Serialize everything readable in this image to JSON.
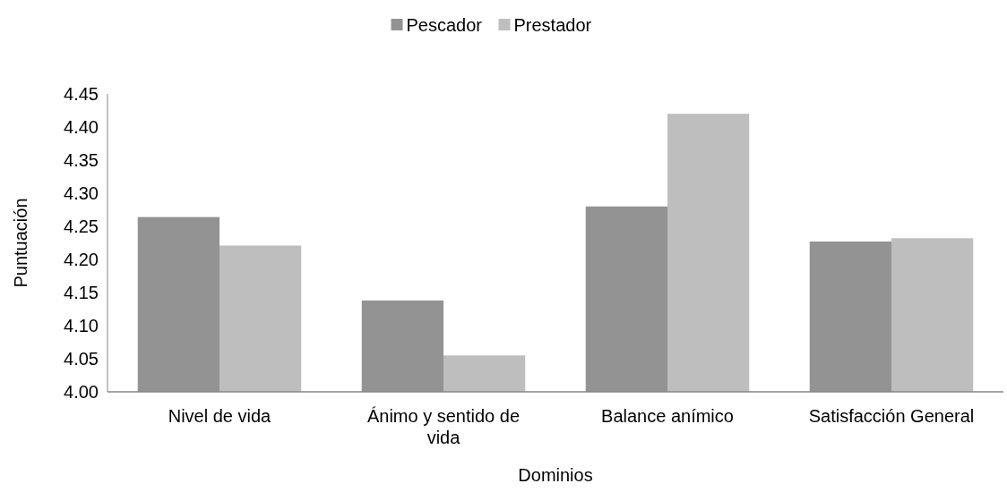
{
  "chart_data": {
    "type": "bar",
    "xlabel": "Dominios",
    "ylabel": "Puntuación",
    "categories": [
      "Nivel de vida",
      "Ánimo y sentido de vida",
      "Balance anímico",
      "Satisfacción General"
    ],
    "series": [
      {
        "name": "Pescador",
        "color": "#939393",
        "values": [
          4.264,
          4.138,
          4.28,
          4.227
        ]
      },
      {
        "name": "Prestador",
        "color": "#bebebe",
        "values": [
          4.221,
          4.055,
          4.42,
          4.232
        ]
      }
    ],
    "ylim": [
      4.0,
      4.45
    ],
    "yticks": [
      {
        "value": 4.0,
        "label": "4.00"
      },
      {
        "value": 4.05,
        "label": "4.05"
      },
      {
        "value": 4.1,
        "label": "4.10"
      },
      {
        "value": 4.15,
        "label": "4.15"
      },
      {
        "value": 4.2,
        "label": "4.20"
      },
      {
        "value": 4.25,
        "label": "4.25"
      },
      {
        "value": 4.3,
        "label": "4.30"
      },
      {
        "value": 4.35,
        "label": "4.35"
      },
      {
        "value": 4.4,
        "label": "4.40"
      },
      {
        "value": 4.45,
        "label": "4.45"
      }
    ],
    "legend": "top",
    "grid": false
  }
}
